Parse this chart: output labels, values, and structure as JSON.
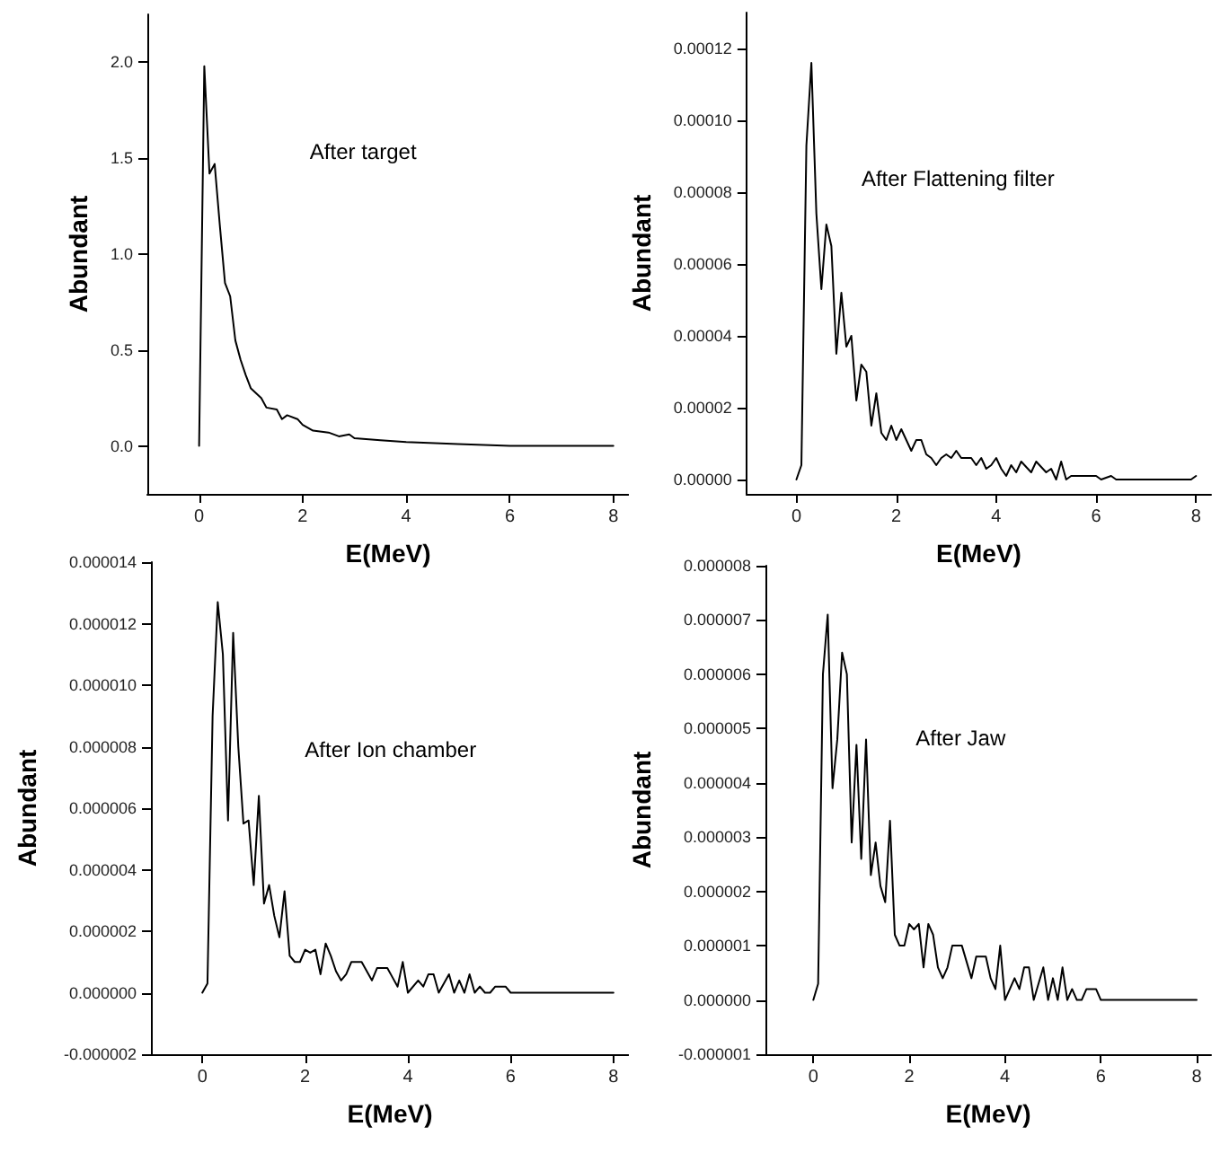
{
  "chart_data": [
    {
      "type": "line",
      "xlabel": "E(MeV)",
      "ylabel": "Abundant",
      "annotations": [
        "After target"
      ],
      "color": "#000000",
      "marker": "none",
      "x": [
        0,
        0.1,
        0.2,
        0.3,
        0.4,
        0.5,
        0.6,
        0.7,
        0.8,
        0.9,
        1.0,
        1.2,
        1.3,
        1.5,
        1.6,
        1.7,
        1.9,
        2.0,
        2.2,
        2.5,
        2.7,
        2.9,
        3.0,
        3.5,
        4,
        5,
        6,
        7,
        8
      ],
      "values": [
        0,
        1.98,
        1.42,
        1.47,
        1.15,
        0.85,
        0.78,
        0.55,
        0.45,
        0.37,
        0.3,
        0.25,
        0.2,
        0.19,
        0.14,
        0.16,
        0.14,
        0.11,
        0.08,
        0.07,
        0.05,
        0.06,
        0.04,
        0.03,
        0.02,
        0.01,
        0,
        0,
        0
      ],
      "xlim": [
        -1,
        8.3
      ],
      "xticks": [
        0,
        2,
        4,
        6,
        8
      ],
      "ylim": [
        -0.25,
        2.25
      ],
      "yticks": [
        {
          "value": 0,
          "label": "0.0"
        },
        {
          "value": 0.5,
          "label": "0.5"
        },
        {
          "value": 1,
          "label": "1.0"
        },
        {
          "value": 1.5,
          "label": "1.5"
        },
        {
          "value": 2,
          "label": "2.0"
        }
      ]
    },
    {
      "type": "line",
      "xlabel": "E(MeV)",
      "ylabel": "Abundant",
      "annotations": [
        "After Flattening filter"
      ],
      "color": "#000000",
      "marker": "none",
      "x": [
        0,
        0.1,
        0.2,
        0.3,
        0.4,
        0.5,
        0.6,
        0.7,
        0.8,
        0.9,
        1.0,
        1.1,
        1.2,
        1.3,
        1.4,
        1.5,
        1.6,
        1.7,
        1.8,
        1.9,
        2.0,
        2.1,
        2.2,
        2.3,
        2.4,
        2.5,
        2.6,
        2.7,
        2.8,
        2.9,
        3.0,
        3.1,
        3.2,
        3.3,
        3.5,
        3.6,
        3.7,
        3.8,
        3.9,
        4.0,
        4.1,
        4.2,
        4.3,
        4.4,
        4.5,
        4.7,
        4.8,
        5.0,
        5.1,
        5.2,
        5.3,
        5.4,
        5.5,
        6.0,
        6.1,
        6.3,
        6.4,
        7.9,
        8.0
      ],
      "values": [
        0,
        4e-06,
        9.3e-05,
        0.000116,
        7.4e-05,
        5.3e-05,
        7.1e-05,
        6.5e-05,
        3.5e-05,
        5.2e-05,
        3.7e-05,
        4e-05,
        2.2e-05,
        3.2e-05,
        3e-05,
        1.5e-05,
        2.4e-05,
        1.3e-05,
        1.1e-05,
        1.5e-05,
        1.1e-05,
        1.4e-05,
        1.1e-05,
        8e-06,
        1.1e-05,
        1.1e-05,
        7e-06,
        6e-06,
        4e-06,
        6e-06,
        7e-06,
        6e-06,
        8e-06,
        6e-06,
        6e-06,
        4e-06,
        6e-06,
        3e-06,
        4e-06,
        6e-06,
        3e-06,
        1e-06,
        4e-06,
        2e-06,
        5e-06,
        2e-06,
        5e-06,
        2e-06,
        3e-06,
        0,
        5e-06,
        0,
        1e-06,
        1e-06,
        0,
        1e-06,
        0,
        0,
        1e-06
      ],
      "xlim": [
        -1,
        8.3
      ],
      "xticks": [
        0,
        2,
        4,
        6,
        8
      ],
      "ylim": [
        -4e-06,
        0.00013
      ],
      "yticks": [
        {
          "value": 0,
          "label": "0.00000"
        },
        {
          "value": 2e-05,
          "label": "0.00002"
        },
        {
          "value": 4e-05,
          "label": "0.00004"
        },
        {
          "value": 6e-05,
          "label": "0.00006"
        },
        {
          "value": 8e-05,
          "label": "0.00008"
        },
        {
          "value": 0.0001,
          "label": "0.00010"
        },
        {
          "value": 0.00012,
          "label": "0.00012"
        }
      ]
    },
    {
      "type": "line",
      "xlabel": "E(MeV)",
      "ylabel": "Abundant",
      "annotations": [
        "After Ion chamber"
      ],
      "color": "#000000",
      "marker": "none",
      "x": [
        0,
        0.1,
        0.2,
        0.3,
        0.4,
        0.5,
        0.6,
        0.7,
        0.8,
        0.9,
        1.0,
        1.1,
        1.2,
        1.3,
        1.4,
        1.5,
        1.6,
        1.7,
        1.8,
        1.9,
        2.0,
        2.1,
        2.2,
        2.3,
        2.4,
        2.5,
        2.6,
        2.7,
        2.8,
        2.9,
        3.1,
        3.3,
        3.4,
        3.6,
        3.7,
        3.8,
        3.9,
        4.0,
        4.2,
        4.3,
        4.4,
        4.5,
        4.6,
        4.8,
        4.9,
        5.0,
        5.1,
        5.2,
        5.3,
        5.4,
        5.5,
        5.6,
        5.7,
        5.9,
        6.0,
        8
      ],
      "values": [
        0,
        3e-07,
        9e-06,
        1.27e-05,
        1.1e-05,
        5.6e-06,
        1.17e-05,
        8e-06,
        5.5e-06,
        5.6e-06,
        3.5e-06,
        6.4e-06,
        2.9e-06,
        3.5e-06,
        2.5e-06,
        1.8e-06,
        3.3e-06,
        1.2e-06,
        1e-06,
        1e-06,
        1.4e-06,
        1.3e-06,
        1.4e-06,
        6e-07,
        1.6e-06,
        1.2e-06,
        7e-07,
        4e-07,
        6e-07,
        1e-06,
        1e-06,
        4e-07,
        8e-07,
        8e-07,
        5e-07,
        2e-07,
        1e-06,
        0,
        4e-07,
        2e-07,
        6e-07,
        6e-07,
        0,
        6e-07,
        0,
        4e-07,
        0,
        6e-07,
        0,
        2e-07,
        0,
        0,
        2e-07,
        2e-07,
        0,
        0
      ],
      "xlim": [
        -1,
        8.3
      ],
      "xticks": [
        0,
        2,
        4,
        6,
        8
      ],
      "ylim": [
        -2e-06,
        1.4e-05
      ],
      "yticks": [
        {
          "value": -2e-06,
          "label": "-0.000002"
        },
        {
          "value": 0,
          "label": "0.000000"
        },
        {
          "value": 2e-06,
          "label": "0.000002"
        },
        {
          "value": 4e-06,
          "label": "0.000004"
        },
        {
          "value": 6e-06,
          "label": "0.000006"
        },
        {
          "value": 8e-06,
          "label": "0.000008"
        },
        {
          "value": 1e-05,
          "label": "0.000010"
        },
        {
          "value": 1.2e-05,
          "label": "0.000012"
        },
        {
          "value": 1.4e-05,
          "label": "0.000014"
        }
      ]
    },
    {
      "type": "line",
      "xlabel": "E(MeV)",
      "ylabel": "Abundant",
      "annotations": [
        "After Jaw"
      ],
      "color": "#000000",
      "marker": "none",
      "x": [
        0,
        0.1,
        0.2,
        0.3,
        0.4,
        0.5,
        0.6,
        0.7,
        0.8,
        0.9,
        1.0,
        1.1,
        1.2,
        1.3,
        1.4,
        1.5,
        1.6,
        1.7,
        1.8,
        1.9,
        2.0,
        2.1,
        2.2,
        2.3,
        2.4,
        2.5,
        2.6,
        2.7,
        2.8,
        2.9,
        3.1,
        3.3,
        3.4,
        3.6,
        3.7,
        3.8,
        3.9,
        4.0,
        4.2,
        4.3,
        4.4,
        4.5,
        4.6,
        4.8,
        4.9,
        5.0,
        5.1,
        5.2,
        5.3,
        5.4,
        5.5,
        5.6,
        5.7,
        5.9,
        6.0,
        8
      ],
      "values": [
        0,
        3e-07,
        6e-06,
        7.1e-06,
        3.9e-06,
        4.8e-06,
        6.4e-06,
        6e-06,
        2.9e-06,
        4.7e-06,
        2.6e-06,
        4.8e-06,
        2.3e-06,
        2.9e-06,
        2.1e-06,
        1.8e-06,
        3.3e-06,
        1.2e-06,
        1e-06,
        1e-06,
        1.4e-06,
        1.3e-06,
        1.4e-06,
        6e-07,
        1.4e-06,
        1.2e-06,
        6e-07,
        4e-07,
        6e-07,
        1e-06,
        1e-06,
        4e-07,
        8e-07,
        8e-07,
        4e-07,
        2e-07,
        1e-06,
        0,
        4e-07,
        2e-07,
        6e-07,
        6e-07,
        0,
        6e-07,
        0,
        4e-07,
        0,
        6e-07,
        0,
        2e-07,
        0,
        0,
        2e-07,
        2e-07,
        0,
        0
      ],
      "xlim": [
        -1,
        8.3
      ],
      "xticks": [
        0,
        2,
        4,
        6,
        8
      ],
      "ylim": [
        -1e-06,
        8e-06
      ],
      "yticks": [
        {
          "value": -1e-06,
          "label": "-0.000001"
        },
        {
          "value": 0,
          "label": "0.000000"
        },
        {
          "value": 1e-06,
          "label": "0.000001"
        },
        {
          "value": 2e-06,
          "label": "0.000002"
        },
        {
          "value": 3e-06,
          "label": "0.000003"
        },
        {
          "value": 4e-06,
          "label": "0.000004"
        },
        {
          "value": 5e-06,
          "label": "0.000005"
        },
        {
          "value": 6e-06,
          "label": "0.000006"
        },
        {
          "value": 7e-06,
          "label": "0.000007"
        },
        {
          "value": 8e-06,
          "label": "0.000008"
        }
      ]
    }
  ]
}
